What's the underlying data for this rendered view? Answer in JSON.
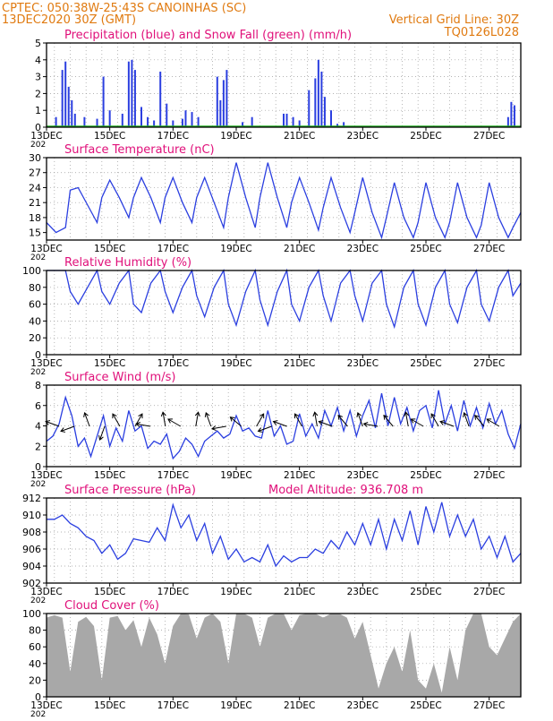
{
  "header": {
    "line1_left": "CPTEC:   050:38W-25:43S   CANOINHAS (SC)",
    "line2_left": "13DEC2020 30Z (GMT)",
    "line1_right": "Vertical Grid Line: 30Z",
    "line2_right": "TQ0126L028"
  },
  "colors": {
    "header": "#e07a10",
    "panel_title": "#e0107a",
    "series": "#2b3fe0",
    "snow": "#20b020",
    "cloud": "#a8a8a8",
    "grid": "#9a9a9a"
  },
  "x_axis": {
    "ticks": [
      "13DEC",
      "15DEC",
      "17DEC",
      "19DEC",
      "21DEC",
      "23DEC",
      "25DEC",
      "27DEC"
    ],
    "year_fragment": "202"
  },
  "chart_data": [
    {
      "id": "precip",
      "type": "bar",
      "title": "Precipitation (blue) and Snow Fall (green) (mm/h)",
      "ylim": [
        0,
        5
      ],
      "yticks": [
        "0",
        "1",
        "2",
        "3",
        "4",
        "5"
      ],
      "grid": true,
      "series": [
        {
          "name": "Precipitation (blue)",
          "x_day": [
            13.3,
            13.5,
            13.6,
            13.7,
            13.8,
            13.9,
            14.2,
            14.6,
            14.8,
            15.0,
            15.4,
            15.6,
            15.7,
            15.8,
            16.0,
            16.2,
            16.4,
            16.6,
            16.8,
            17.0,
            17.3,
            17.4,
            17.6,
            17.8,
            18.4,
            18.5,
            18.6,
            18.7,
            19.2,
            19.5,
            20.5,
            20.6,
            20.8,
            21.0,
            21.3,
            21.5,
            21.6,
            21.7,
            21.8,
            22.0,
            22.2,
            22.4,
            27.6,
            27.7,
            27.8
          ],
          "values": [
            0.6,
            3.4,
            3.9,
            2.4,
            1.6,
            0.8,
            0.6,
            0.5,
            3.0,
            1.0,
            0.8,
            3.9,
            4.0,
            3.4,
            1.2,
            0.6,
            0.4,
            3.3,
            1.4,
            0.4,
            0.5,
            1.0,
            0.9,
            0.6,
            3.0,
            1.6,
            2.8,
            3.4,
            0.3,
            0.6,
            0.8,
            0.8,
            0.6,
            0.4,
            2.2,
            2.9,
            4.0,
            3.3,
            1.8,
            1.0,
            0.2,
            0.3,
            0.6,
            1.5,
            1.3
          ]
        },
        {
          "name": "Snow Fall (green)",
          "values": [
            0
          ]
        }
      ]
    },
    {
      "id": "temp",
      "type": "line",
      "title": "Surface Temperature (nC)",
      "ylim": [
        13.5,
        30
      ],
      "yticks": [
        "15",
        "18",
        "21",
        "24",
        "27",
        "30"
      ],
      "grid": true,
      "series": [
        {
          "name": "",
          "x_day": [
            13.0,
            13.3,
            13.6,
            13.75,
            14.0,
            14.3,
            14.6,
            14.75,
            15.0,
            15.3,
            15.6,
            15.75,
            16.0,
            16.3,
            16.6,
            16.75,
            17.0,
            17.3,
            17.6,
            17.75,
            18.0,
            18.3,
            18.6,
            18.75,
            19.0,
            19.3,
            19.6,
            19.75,
            20.0,
            20.3,
            20.6,
            20.75,
            21.0,
            21.3,
            21.6,
            21.75,
            22.0,
            22.3,
            22.6,
            22.75,
            23.0,
            23.3,
            23.6,
            23.75,
            24.0,
            24.3,
            24.6,
            24.75,
            25.0,
            25.3,
            25.6,
            25.75,
            26.0,
            26.3,
            26.6,
            26.75,
            27.0,
            27.3,
            27.6,
            27.75,
            28.0
          ],
          "values": [
            17.0,
            15.0,
            16.0,
            23.5,
            24.0,
            20.5,
            17.0,
            22.0,
            25.5,
            22.0,
            18.0,
            22.0,
            26.0,
            22.0,
            17.0,
            22.0,
            26.0,
            21.0,
            17.0,
            22.0,
            26.0,
            21.0,
            16.0,
            22.0,
            29.0,
            22.0,
            16.0,
            22.0,
            29.0,
            22.0,
            16.0,
            21.0,
            26.0,
            21.0,
            15.5,
            20.0,
            26.0,
            20.0,
            15.0,
            19.0,
            26.0,
            19.0,
            14.0,
            18.0,
            25.0,
            18.0,
            14.0,
            17.0,
            25.0,
            18.0,
            14.0,
            17.0,
            25.0,
            18.0,
            14.0,
            16.5,
            25.0,
            18.0,
            14.0,
            16.0,
            19.0
          ]
        }
      ]
    },
    {
      "id": "rh",
      "type": "line",
      "title": "Relative Humidity (%)",
      "ylim": [
        0,
        100
      ],
      "yticks": [
        "0",
        "20",
        "40",
        "60",
        "80",
        "100"
      ],
      "grid": true,
      "series": [
        {
          "name": "",
          "x_day": [
            13.0,
            13.3,
            13.6,
            13.75,
            14.0,
            14.3,
            14.6,
            14.75,
            15.0,
            15.3,
            15.6,
            15.75,
            16.0,
            16.3,
            16.6,
            16.75,
            17.0,
            17.3,
            17.6,
            17.75,
            18.0,
            18.3,
            18.6,
            18.75,
            19.0,
            19.3,
            19.6,
            19.75,
            20.0,
            20.3,
            20.6,
            20.75,
            21.0,
            21.3,
            21.6,
            21.75,
            22.0,
            22.3,
            22.6,
            22.75,
            23.0,
            23.3,
            23.6,
            23.75,
            24.0,
            24.3,
            24.6,
            24.75,
            25.0,
            25.3,
            25.6,
            25.75,
            26.0,
            26.3,
            26.6,
            26.75,
            27.0,
            27.3,
            27.6,
            27.75,
            28.0
          ],
          "values": [
            100,
            100,
            100,
            75,
            60,
            80,
            100,
            75,
            60,
            85,
            100,
            60,
            50,
            85,
            100,
            75,
            50,
            80,
            100,
            70,
            45,
            80,
            100,
            60,
            35,
            75,
            100,
            65,
            35,
            75,
            100,
            60,
            40,
            80,
            100,
            70,
            40,
            85,
            100,
            70,
            40,
            85,
            100,
            60,
            33,
            80,
            100,
            60,
            35,
            80,
            100,
            60,
            38,
            80,
            100,
            60,
            40,
            80,
            100,
            70,
            85
          ]
        }
      ]
    },
    {
      "id": "wind",
      "type": "line",
      "title": "Surface Wind (m/s)",
      "ylim": [
        0,
        8
      ],
      "yticks": [
        "0",
        "2",
        "4",
        "6",
        "8"
      ],
      "grid": true,
      "series": [
        {
          "name": "",
          "x_day": [
            13.0,
            13.2,
            13.4,
            13.6,
            13.8,
            14.0,
            14.2,
            14.4,
            14.6,
            14.8,
            15.0,
            15.2,
            15.4,
            15.6,
            15.8,
            16.0,
            16.2,
            16.4,
            16.6,
            16.8,
            17.0,
            17.2,
            17.4,
            17.6,
            17.8,
            18.0,
            18.2,
            18.4,
            18.6,
            18.8,
            19.0,
            19.2,
            19.4,
            19.6,
            19.8,
            20.0,
            20.2,
            20.4,
            20.6,
            20.8,
            21.0,
            21.2,
            21.4,
            21.6,
            21.8,
            22.0,
            22.2,
            22.4,
            22.6,
            22.8,
            23.0,
            23.2,
            23.4,
            23.6,
            23.8,
            24.0,
            24.2,
            24.4,
            24.6,
            24.8,
            25.0,
            25.2,
            25.4,
            25.6,
            25.8,
            26.0,
            26.2,
            26.4,
            26.6,
            26.8,
            27.0,
            27.2,
            27.4,
            27.6,
            27.8,
            28.0
          ],
          "values": [
            2.5,
            3.0,
            4.2,
            6.8,
            5.0,
            2.0,
            2.8,
            1.0,
            3.0,
            5.0,
            2.0,
            3.8,
            2.5,
            5.5,
            3.5,
            4.0,
            1.8,
            2.5,
            2.2,
            3.2,
            0.8,
            1.5,
            2.8,
            2.2,
            1.0,
            2.5,
            3.0,
            3.5,
            2.8,
            3.2,
            5.0,
            3.5,
            3.8,
            3.0,
            2.8,
            5.5,
            3.0,
            4.0,
            2.2,
            2.5,
            5.2,
            3.0,
            4.2,
            2.8,
            5.5,
            4.0,
            5.8,
            3.5,
            5.5,
            3.0,
            5.0,
            6.5,
            3.8,
            7.2,
            4.0,
            6.8,
            4.2,
            5.8,
            3.5,
            5.5,
            6.0,
            3.8,
            7.5,
            4.2,
            6.0,
            3.5,
            6.5,
            4.0,
            5.8,
            3.8,
            6.2,
            4.2,
            5.5,
            3.2,
            1.8,
            4.2
          ]
        }
      ]
    },
    {
      "id": "pressure",
      "type": "line",
      "title": "Surface Pressure (hPa)",
      "annotation": "Model Altitude: 936.708 m",
      "ylim": [
        902,
        912
      ],
      "yticks": [
        "902",
        "904",
        "906",
        "908",
        "910",
        "912"
      ],
      "grid": true,
      "series": [
        {
          "name": "",
          "x_day": [
            13.0,
            13.25,
            13.5,
            13.75,
            14.0,
            14.25,
            14.5,
            14.75,
            15.0,
            15.25,
            15.5,
            15.75,
            16.0,
            16.25,
            16.5,
            16.75,
            17.0,
            17.25,
            17.5,
            17.75,
            18.0,
            18.25,
            18.5,
            18.75,
            19.0,
            19.25,
            19.5,
            19.75,
            20.0,
            20.25,
            20.5,
            20.75,
            21.0,
            21.25,
            21.5,
            21.75,
            22.0,
            22.25,
            22.5,
            22.75,
            23.0,
            23.25,
            23.5,
            23.75,
            24.0,
            24.25,
            24.5,
            24.75,
            25.0,
            25.25,
            25.5,
            25.75,
            26.0,
            26.25,
            26.5,
            26.75,
            27.0,
            27.25,
            27.5,
            27.75,
            28.0
          ],
          "values": [
            909.5,
            909.5,
            910.0,
            909.0,
            908.5,
            907.5,
            907.0,
            905.5,
            906.5,
            904.8,
            905.5,
            907.2,
            907.0,
            906.8,
            908.5,
            907.0,
            911.2,
            908.5,
            910.0,
            907.0,
            909.0,
            905.5,
            907.5,
            904.8,
            906.0,
            904.5,
            905.0,
            904.5,
            906.5,
            904.0,
            905.2,
            904.5,
            905.0,
            905.0,
            906.0,
            905.5,
            907.0,
            906.0,
            908.0,
            906.5,
            909.0,
            906.5,
            909.5,
            906.0,
            909.5,
            907.0,
            910.5,
            906.5,
            911.0,
            908.0,
            911.5,
            907.5,
            910.0,
            907.5,
            909.5,
            906.0,
            907.5,
            905.0,
            907.5,
            904.5,
            905.5
          ]
        }
      ]
    },
    {
      "id": "cloud",
      "type": "area",
      "title": "Cloud Cover (%)",
      "ylim": [
        0,
        100
      ],
      "yticks": [
        "0",
        "20",
        "40",
        "60",
        "80",
        "100"
      ],
      "grid": true,
      "series": [
        {
          "name": "",
          "x_day": [
            13.0,
            13.25,
            13.5,
            13.75,
            14.0,
            14.25,
            14.5,
            14.75,
            15.0,
            15.25,
            15.5,
            15.75,
            16.0,
            16.25,
            16.5,
            16.75,
            17.0,
            17.25,
            17.5,
            17.75,
            18.0,
            18.25,
            18.5,
            18.75,
            19.0,
            19.25,
            19.5,
            19.75,
            20.0,
            20.25,
            20.5,
            20.75,
            21.0,
            21.25,
            21.5,
            21.75,
            22.0,
            22.25,
            22.5,
            22.75,
            23.0,
            23.25,
            23.5,
            23.75,
            24.0,
            24.25,
            24.5,
            24.75,
            25.0,
            25.25,
            25.5,
            25.75,
            26.0,
            26.25,
            26.5,
            26.75,
            27.0,
            27.25,
            27.5,
            27.75,
            28.0
          ],
          "values": [
            95,
            98,
            95,
            30,
            90,
            96,
            85,
            20,
            95,
            97,
            80,
            92,
            60,
            95,
            75,
            40,
            85,
            100,
            99,
            70,
            95,
            100,
            90,
            40,
            100,
            100,
            95,
            60,
            95,
            100,
            100,
            80,
            98,
            100,
            100,
            95,
            100,
            100,
            95,
            70,
            90,
            50,
            10,
            40,
            60,
            30,
            80,
            20,
            10,
            40,
            5,
            60,
            20,
            80,
            100,
            100,
            60,
            50,
            70,
            90,
            100
          ]
        }
      ]
    }
  ]
}
